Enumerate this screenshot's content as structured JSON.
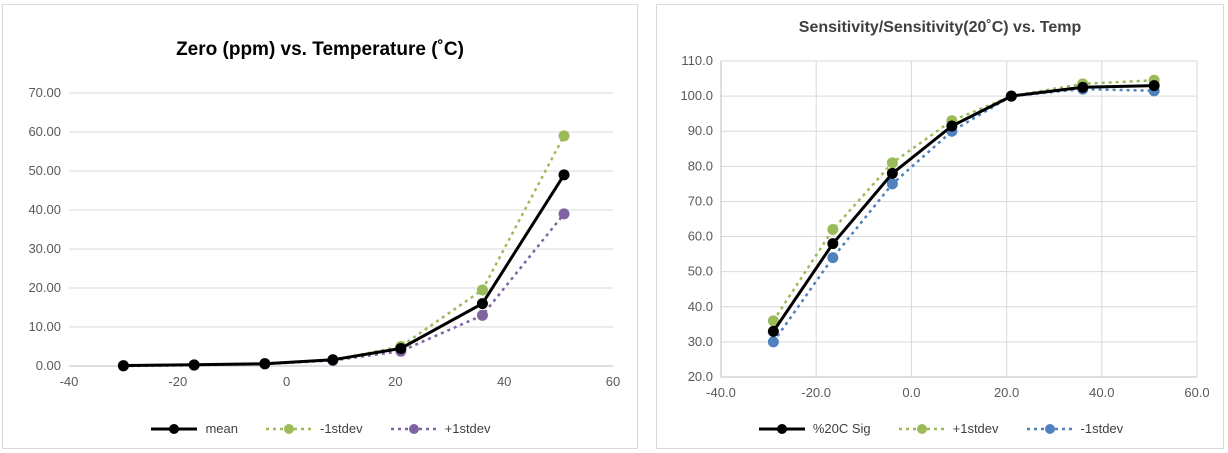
{
  "chart_data": [
    {
      "type": "line",
      "title": "Zero (ppm) vs. Temperature (˚C)",
      "xlabel": "",
      "ylabel": "",
      "xlim": [
        -40,
        60
      ],
      "ylim": [
        0,
        70
      ],
      "x_ticks": [
        "-40",
        "-20",
        "0",
        "20",
        "40",
        "60"
      ],
      "y_ticks": [
        "0.00",
        "10.00",
        "20.00",
        "30.00",
        "40.00",
        "50.00",
        "60.00",
        "70.00"
      ],
      "grid": "horizontal",
      "legend_position": "bottom",
      "series": [
        {
          "name": "mean",
          "color": "#000000",
          "style": "solid",
          "x": [
            -30,
            -17,
            -4,
            8.5,
            21,
            36,
            51
          ],
          "y": [
            0.1,
            0.3,
            0.6,
            1.6,
            4.5,
            16.0,
            49.0
          ]
        },
        {
          "name": "-1stdev",
          "color": "#9bbb59",
          "style": "dotted",
          "x": [
            -30,
            -17,
            -4,
            8.5,
            21,
            36,
            51
          ],
          "y": [
            0.0,
            0.2,
            0.6,
            1.5,
            5.0,
            19.5,
            59.0
          ]
        },
        {
          "name": "+1stdev",
          "color": "#8064a2",
          "style": "dotted",
          "x": [
            -30,
            -17,
            -4,
            8.5,
            21,
            36,
            51
          ],
          "y": [
            0.0,
            0.2,
            0.5,
            1.4,
            3.8,
            13.0,
            39.0
          ]
        }
      ]
    },
    {
      "type": "line",
      "title": "Sensitivity/Sensitivity(20˚C) vs. Temp",
      "xlabel": "",
      "ylabel": "",
      "xlim": [
        -40,
        60
      ],
      "ylim": [
        20,
        110
      ],
      "x_ticks": [
        "-40.0",
        "-20.0",
        "0.0",
        "20.0",
        "40.0",
        "60.0"
      ],
      "y_ticks": [
        "20.0",
        "30.0",
        "40.0",
        "50.0",
        "60.0",
        "70.0",
        "80.0",
        "90.0",
        "100.0",
        "110.0"
      ],
      "grid": "both",
      "legend_position": "bottom",
      "series": [
        {
          "name": "%20C Sig",
          "color": "#000000",
          "style": "solid",
          "x": [
            -29,
            -16.5,
            -4,
            8.5,
            21,
            36,
            51
          ],
          "y": [
            33.0,
            58.0,
            78.0,
            91.5,
            100.0,
            102.5,
            103.0
          ]
        },
        {
          "name": "+1stdev",
          "color": "#9bbb59",
          "style": "dotted",
          "x": [
            -29,
            -16.5,
            -4,
            8.5,
            21,
            36,
            51
          ],
          "y": [
            36.0,
            62.0,
            81.0,
            93.0,
            100.0,
            103.5,
            104.5
          ]
        },
        {
          "name": "-1stdev",
          "color": "#4f81bd",
          "style": "dotted",
          "x": [
            -29,
            -16.5,
            -4,
            8.5,
            21,
            36,
            51
          ],
          "y": [
            30.0,
            54.0,
            75.0,
            90.0,
            100.0,
            102.0,
            101.5
          ]
        }
      ]
    }
  ]
}
